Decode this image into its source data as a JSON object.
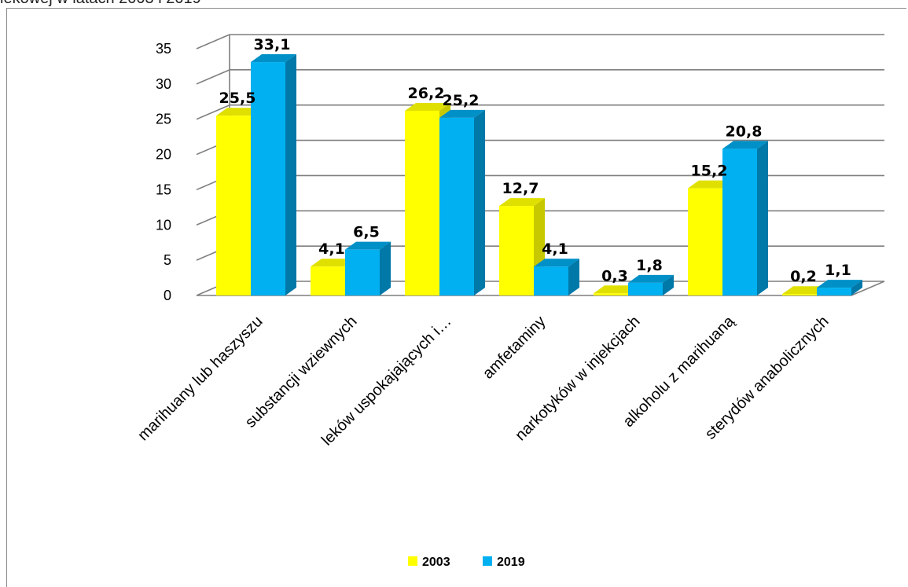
{
  "header": {
    "title_fragment": "iekowej w latach 2003 i 2019"
  },
  "chart_data": {
    "type": "bar",
    "title": "",
    "xlabel": "",
    "ylabel": "",
    "ylim": [
      0,
      35
    ],
    "yticks": [
      "0",
      "5",
      "10",
      "15",
      "20",
      "25",
      "30",
      "35"
    ],
    "grid": true,
    "legend_position": "bottom",
    "categories": [
      "marihuany lub haszyszu",
      "substancji wziewnych",
      "leków uspokajających i…",
      "amfetaminy",
      "narkotyków w injekcjach",
      "alkoholu z marihuaną",
      "sterydów anabolicznych"
    ],
    "series": [
      {
        "name": "2003",
        "color": "#FFFF00",
        "side_color": "#C8C800",
        "top_color": "#E0E000",
        "values": [
          25.5,
          4.1,
          26.2,
          12.7,
          0.3,
          15.2,
          0.2
        ],
        "labels": [
          "25,5",
          "4,1",
          "26,2",
          "12,7",
          "0,3",
          "15,2",
          "0,2"
        ]
      },
      {
        "name": "2019",
        "color": "#00B0F0",
        "side_color": "#0078A8",
        "top_color": "#0090C8",
        "values": [
          33.1,
          6.5,
          25.2,
          4.1,
          1.8,
          20.8,
          1.1
        ],
        "labels": [
          "33,1",
          "6,5",
          "25,2",
          "4,1",
          "1,8",
          "20,8",
          "1,1"
        ]
      }
    ]
  }
}
